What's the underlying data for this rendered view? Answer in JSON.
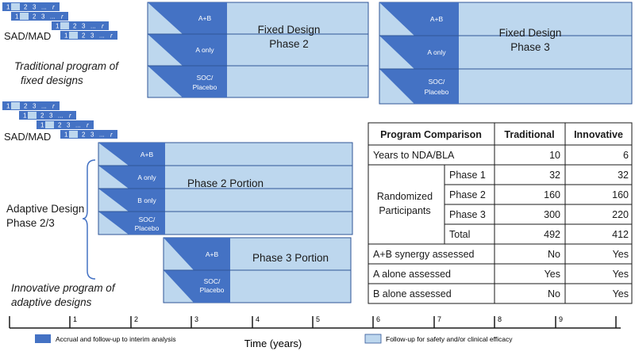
{
  "traditional": {
    "sad_mad": {
      "label": "SAD/MAD",
      "cells": [
        "1",
        "2",
        "3",
        "...",
        "r"
      ]
    },
    "caption_line1": "Traditional program of",
    "caption_line2": "fixed designs",
    "phase2": {
      "title_line1": "Fixed Design",
      "title_line2": "Phase 2",
      "arms": [
        {
          "line1": "A+B",
          "line2": ""
        },
        {
          "line1": "A only",
          "line2": ""
        },
        {
          "line1": "SOC/",
          "line2": "Placebo"
        }
      ]
    },
    "phase3": {
      "title_line1": "Fixed Design",
      "title_line2": "Phase 3",
      "arms": [
        {
          "line1": "A+B",
          "line2": ""
        },
        {
          "line1": "A only",
          "line2": ""
        },
        {
          "line1": "SOC/",
          "line2": "Placebo"
        }
      ]
    }
  },
  "innovative": {
    "sad_mad": {
      "label": "SAD/MAD",
      "cells": [
        "1",
        "2",
        "3",
        "...",
        "r"
      ]
    },
    "adaptive_label_line1": "Adaptive Design",
    "adaptive_label_line2": "Phase 2/3",
    "caption_line1": "Innovative program of",
    "caption_line2": "adaptive designs",
    "phase2_portion": {
      "title": "Phase 2 Portion",
      "arms": [
        {
          "line1": "A+B",
          "line2": ""
        },
        {
          "line1": "A only",
          "line2": ""
        },
        {
          "line1": "B only",
          "line2": ""
        },
        {
          "line1": "SOC/",
          "line2": "Placebo"
        }
      ]
    },
    "phase3_portion": {
      "title": "Phase 3 Portion",
      "arms": [
        {
          "line1": "A+B",
          "line2": ""
        },
        {
          "line1": "SOC/",
          "line2": "Placebo"
        }
      ]
    }
  },
  "comparison_table": {
    "headers": [
      "Program Comparison",
      "Traditional",
      "Innovative"
    ],
    "years_row": {
      "label": "Years to NDA/BLA",
      "traditional": "10",
      "innovative": "6"
    },
    "randomized_label_line1": "Randomized",
    "randomized_label_line2": "Participants",
    "randomized_rows": [
      {
        "label": "Phase 1",
        "traditional": "32",
        "innovative": "32"
      },
      {
        "label": "Phase 2",
        "traditional": "160",
        "innovative": "160"
      },
      {
        "label": "Phase 3",
        "traditional": "300",
        "innovative": "220"
      },
      {
        "label": "Total",
        "traditional": "492",
        "innovative": "412"
      }
    ],
    "assessment_rows": [
      {
        "label": "A+B synergy assessed",
        "traditional": "No",
        "innovative": "Yes"
      },
      {
        "label": "A alone assessed",
        "traditional": "Yes",
        "innovative": "Yes"
      },
      {
        "label": "B alone assessed",
        "traditional": "No",
        "innovative": "Yes"
      }
    ]
  },
  "timeline": {
    "ticks": [
      "1",
      "2",
      "3",
      "4",
      "5",
      "6",
      "7",
      "8",
      "9"
    ],
    "axis_label": "Time (years)"
  },
  "legend": {
    "dark_label": "Accrual and follow-up to interim analysis",
    "light_label": "Follow-up for safety and/or clinical efficacy"
  },
  "colors": {
    "dark_blue": "#4472c4",
    "light_blue": "#bdd7ee",
    "border_blue": "#2f5597",
    "text_dark": "#1a1a1a"
  }
}
